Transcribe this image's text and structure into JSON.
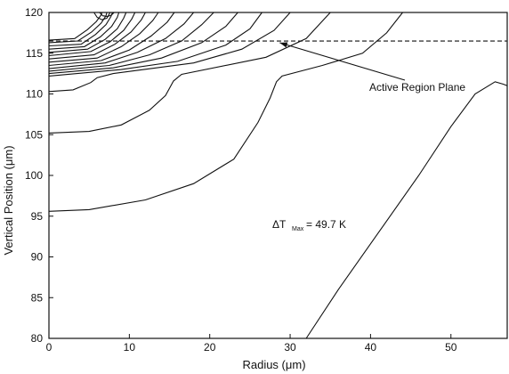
{
  "chart_data": {
    "type": "line",
    "title": "",
    "xlabel": "Radius (μm)",
    "ylabel": "Vertical Position (μm)",
    "xlim": [
      0,
      57
    ],
    "ylim": [
      80,
      120
    ],
    "x_ticks": [
      0,
      10,
      20,
      30,
      40,
      50
    ],
    "y_ticks": [
      80,
      85,
      90,
      95,
      100,
      105,
      110,
      115,
      120
    ],
    "grid": false,
    "active_region_plane_y": 116.5,
    "annotations": {
      "active_region_label": "Active Region Plane",
      "dt_prefix": "ΔT",
      "dt_subscript": "Max",
      "dt_value": "= 49.7 K"
    },
    "series": [
      {
        "values": [
          [
            32,
            80
          ],
          [
            36,
            86
          ],
          [
            41,
            93
          ],
          [
            46,
            100
          ],
          [
            50,
            106
          ],
          [
            53,
            110
          ],
          [
            55.5,
            111.5
          ],
          [
            56.5,
            111.2
          ],
          [
            57,
            111
          ]
        ]
      },
      {
        "values": [
          [
            0,
            95.6
          ],
          [
            5,
            95.8
          ],
          [
            12,
            97
          ],
          [
            18,
            99
          ],
          [
            23,
            102
          ],
          [
            26,
            106.5
          ],
          [
            27.5,
            109.5
          ],
          [
            28.3,
            111.5
          ],
          [
            29,
            112.2
          ],
          [
            34,
            113.5
          ],
          [
            39,
            115
          ],
          [
            42,
            117.5
          ],
          [
            44,
            120
          ]
        ]
      },
      {
        "values": [
          [
            0,
            105.2
          ],
          [
            5,
            105.4
          ],
          [
            9,
            106.2
          ],
          [
            12.5,
            108
          ],
          [
            14.5,
            109.8
          ],
          [
            15.5,
            111.6
          ],
          [
            16.5,
            112.4
          ],
          [
            27,
            114.5
          ],
          [
            32,
            116.8
          ],
          [
            35,
            120
          ]
        ]
      },
      {
        "values": [
          [
            0,
            110.3
          ],
          [
            3,
            110.5
          ],
          [
            5.2,
            111.4
          ],
          [
            6,
            112
          ],
          [
            8,
            112.5
          ],
          [
            18,
            113.8
          ],
          [
            24,
            115.5
          ],
          [
            28,
            117.8
          ],
          [
            30,
            120
          ]
        ]
      },
      {
        "values": [
          [
            0,
            112.2
          ],
          [
            9,
            113
          ],
          [
            16,
            114
          ],
          [
            22,
            116
          ],
          [
            25,
            118
          ],
          [
            26.5,
            120
          ]
        ]
      },
      {
        "values": [
          [
            0,
            112.5
          ],
          [
            8,
            113.2
          ],
          [
            14,
            114.4
          ],
          [
            19,
            116.3
          ],
          [
            22,
            118.3
          ],
          [
            23.5,
            120
          ]
        ]
      },
      {
        "values": [
          [
            0,
            112.8
          ],
          [
            7.5,
            113.5
          ],
          [
            12.5,
            114.8
          ],
          [
            16.5,
            116.5
          ],
          [
            19,
            118.5
          ],
          [
            20.5,
            120
          ]
        ]
      },
      {
        "values": [
          [
            0,
            113.1
          ],
          [
            7,
            113.8
          ],
          [
            11,
            115.1
          ],
          [
            14.5,
            116.8
          ],
          [
            16.8,
            118.6
          ],
          [
            18,
            120
          ]
        ]
      },
      {
        "values": [
          [
            0,
            113.5
          ],
          [
            6.5,
            114.1
          ],
          [
            10,
            115.4
          ],
          [
            12.7,
            117.1
          ],
          [
            14.7,
            118.8
          ],
          [
            15.6,
            120
          ]
        ]
      },
      {
        "values": [
          [
            0,
            113.9
          ],
          [
            6,
            114.4
          ],
          [
            9,
            115.8
          ],
          [
            11.3,
            117.4
          ],
          [
            12.9,
            119
          ],
          [
            13.6,
            120
          ]
        ]
      },
      {
        "values": [
          [
            0,
            114.3
          ],
          [
            5.6,
            114.8
          ],
          [
            8.2,
            116.1
          ],
          [
            10.2,
            117.6
          ],
          [
            11.5,
            119.1
          ],
          [
            12,
            120
          ]
        ]
      },
      {
        "values": [
          [
            0,
            114.7
          ],
          [
            5.2,
            115.2
          ],
          [
            7.6,
            116.4
          ],
          [
            9.3,
            117.8
          ],
          [
            10.3,
            119.2
          ],
          [
            10.7,
            120
          ]
        ]
      },
      {
        "values": [
          [
            0,
            115.1
          ],
          [
            4.8,
            115.5
          ],
          [
            7,
            116.7
          ],
          [
            8.5,
            118
          ],
          [
            9.3,
            119.3
          ],
          [
            9.6,
            120
          ]
        ]
      },
      {
        "values": [
          [
            0,
            115.5
          ],
          [
            4.4,
            115.8
          ],
          [
            6.4,
            117
          ],
          [
            7.8,
            118.3
          ],
          [
            8.5,
            119.4
          ],
          [
            8.7,
            120
          ]
        ]
      },
      {
        "values": [
          [
            0,
            115.9
          ],
          [
            4,
            116.1
          ],
          [
            5.8,
            117.3
          ],
          [
            7.1,
            118.5
          ],
          [
            7.7,
            119.5
          ],
          [
            7.9,
            120
          ]
        ]
      },
      {
        "values": [
          [
            0,
            116.3
          ],
          [
            3.6,
            116.5
          ],
          [
            5.3,
            117.6
          ],
          [
            6.5,
            118.7
          ],
          [
            7.1,
            119.6
          ],
          [
            7.2,
            120
          ]
        ]
      },
      {
        "values": [
          [
            0,
            116.6
          ],
          [
            3.2,
            116.8
          ],
          [
            4.8,
            117.9
          ],
          [
            5.9,
            118.9
          ],
          [
            6.5,
            119.7
          ],
          [
            6.6,
            120
          ]
        ]
      },
      {
        "values": [
          [
            5.6,
            120
          ],
          [
            6.0,
            119.4
          ],
          [
            6.6,
            119.1
          ],
          [
            7.2,
            119.3
          ],
          [
            7.6,
            120
          ]
        ]
      },
      {
        "values": [
          [
            6.3,
            120
          ],
          [
            6.7,
            119.6
          ],
          [
            7.3,
            119.5
          ],
          [
            7.8,
            119.7
          ],
          [
            8.1,
            120
          ]
        ]
      }
    ]
  }
}
